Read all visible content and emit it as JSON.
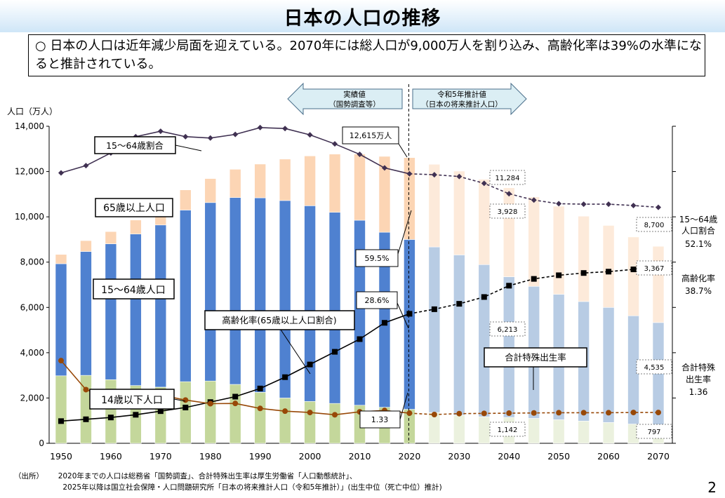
{
  "page": {
    "title": "日本の人口の推移",
    "summary": "○ 日本の人口は近年減少局面を迎えている。2070年には総人口が9,000万人を割り込み、高齢化率は39%の水準になると推計されている。",
    "source_label": "（出所）",
    "source_line1": "2020年までの人口は総務省「国勢調査」、合計特殊出生率は厚生労働省「人口動態統計」、",
    "source_line2": "2025年以降は国立社会保障・人口問題研究所「日本の将来推計人口（令和5年推計）」(出生中位（死亡中位）推計)",
    "page_number": "2"
  },
  "chart_data": {
    "type": "bar",
    "subtype": "stacked bar with line overlays",
    "ylabel": "人口（万人）",
    "ylim": [
      0,
      14000
    ],
    "yticks": [
      "0",
      "2,000",
      "4,000",
      "6,000",
      "8,000",
      "10,000",
      "12,000",
      "14,000"
    ],
    "x": [
      1950,
      1955,
      1960,
      1965,
      1970,
      1975,
      1980,
      1985,
      1990,
      1995,
      2000,
      2005,
      2010,
      2015,
      2020,
      2025,
      2030,
      2035,
      2040,
      2045,
      2050,
      2055,
      2060,
      2065,
      2070
    ],
    "xtick_labels": [
      "1950",
      "1960",
      "1970",
      "1980",
      "1990",
      "2000",
      "2010",
      "2020",
      "2030",
      "2040",
      "2050",
      "2060",
      "2070"
    ],
    "last_actual_year": 2020,
    "series": [
      {
        "name": "14歳以下人口",
        "kind": "bar",
        "color": "#c4d79b",
        "projection_color": "#ebf1de",
        "values": [
          2980,
          3000,
          2810,
          2550,
          2480,
          2720,
          2750,
          2600,
          2250,
          2000,
          1850,
          1760,
          1680,
          1590,
          1500,
          1360,
          1240,
          1170,
          1142,
          1100,
          1040,
          980,
          920,
          850,
          797
        ]
      },
      {
        "name": "15〜64歳人口",
        "kind": "bar",
        "color": "#4f81d0",
        "projection_color": "#b8cce4",
        "values": [
          4950,
          5470,
          6000,
          6690,
          7160,
          7580,
          7880,
          8250,
          8590,
          8720,
          8640,
          8440,
          8170,
          7730,
          7500,
          7310,
          7080,
          6720,
          6213,
          5830,
          5540,
          5280,
          5080,
          4780,
          4535
        ]
      },
      {
        "name": "65歳以上人口",
        "kind": "bar",
        "color": "#fcd5b4",
        "projection_color": "#fdeada",
        "values": [
          410,
          480,
          540,
          620,
          740,
          890,
          1060,
          1250,
          1490,
          1830,
          2200,
          2570,
          2920,
          3350,
          3615,
          3650,
          3700,
          3770,
          3928,
          3950,
          3890,
          3770,
          3620,
          3480,
          3367
        ]
      },
      {
        "name": "15〜64歳割合",
        "kind": "line",
        "color": "#403152",
        "axis": "ratio",
        "values": [
          59.7,
          61.3,
          64.1,
          67.7,
          68.9,
          67.7,
          67.4,
          68.2,
          69.7,
          69.5,
          68.1,
          66.1,
          63.8,
          60.8,
          59.5,
          59.3,
          58.9,
          57.4,
          55.1,
          53.7,
          52.9,
          52.8,
          52.8,
          52.5,
          52.1
        ]
      },
      {
        "name": "高齢化率（65歳以上人口割合）",
        "kind": "line",
        "color": "#000000",
        "axis": "ratio",
        "values": [
          4.9,
          5.3,
          5.7,
          6.3,
          7.1,
          7.9,
          9.1,
          10.3,
          12.1,
          14.6,
          17.4,
          20.2,
          23.0,
          26.6,
          28.6,
          29.6,
          30.8,
          32.3,
          34.8,
          36.3,
          37.1,
          37.6,
          37.9,
          38.4,
          38.7
        ]
      },
      {
        "name": "合計特殊出生率",
        "kind": "line",
        "color": "#984807",
        "axis": "tfr",
        "values": [
          3.65,
          2.37,
          2.0,
          2.14,
          2.13,
          1.91,
          1.75,
          1.76,
          1.54,
          1.42,
          1.36,
          1.26,
          1.39,
          1.45,
          1.33,
          1.27,
          1.31,
          1.32,
          1.33,
          1.34,
          1.35,
          1.35,
          1.35,
          1.36,
          1.36
        ]
      }
    ],
    "callouts": {
      "total_2020": "12,615万人",
      "ratio_2020": "59.5%",
      "aging_2020": "28.6%",
      "tfr_2020": "1.33",
      "total_2040": "11,284",
      "elderly_2040": "3,928",
      "working_2040": "6,213",
      "child_2040": "1,142",
      "total_2070": "8,700",
      "elderly_2070": "3,367",
      "working_2070": "4,535",
      "child_2070": "797"
    },
    "series_labels": {
      "ratio": "15～64歳割合",
      "elderly": "65歳以上人口",
      "working": "15～64歳人口",
      "aging": "高齢化率(65歳以上人口割合)",
      "tfr": "合計特殊出生率",
      "child": "14歳以下人口"
    },
    "right_labels": {
      "ratio_line1": "15～64歳",
      "ratio_line2": "人口割合",
      "ratio_value": "52.1%",
      "aging_line1": "高齢化率",
      "aging_value": "38.7%",
      "tfr_line1": "合計特殊",
      "tfr_line2": "出生率",
      "tfr_value": "1.36"
    },
    "period_labels": {
      "actual_line1": "実績値",
      "actual_line2": "（国勢調査等）",
      "projection_line1": "令和5年推計値",
      "projection_line2": "（日本の将来推計人口）"
    }
  }
}
